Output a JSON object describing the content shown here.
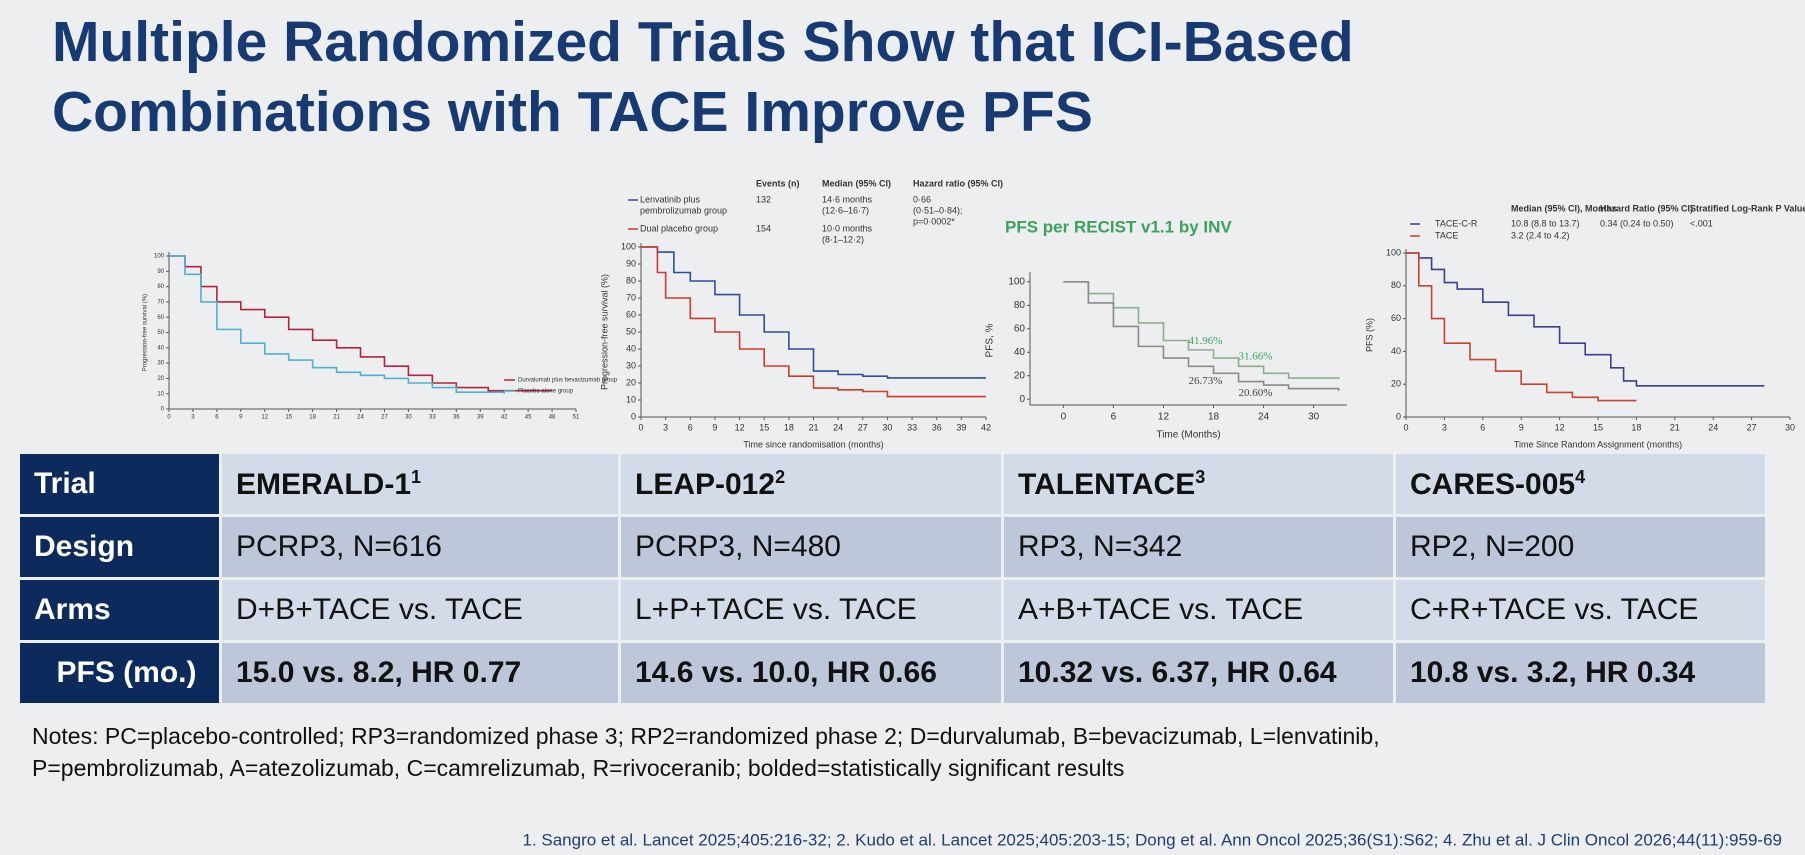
{
  "title": [
    "Multiple Randomized Trials Show that ICI-Based",
    "Combinations with TACE Improve PFS"
  ],
  "figures": [
    {
      "ylabel": "Progression-free survival (%)",
      "xlim": [
        0,
        51
      ],
      "ylim": [
        0,
        100
      ],
      "xticks": [
        0,
        3,
        6,
        9,
        12,
        15,
        18,
        21,
        24,
        27,
        30,
        33,
        36,
        39,
        42,
        45,
        48,
        51
      ],
      "yticks": [
        0,
        10,
        20,
        30,
        40,
        50,
        60,
        70,
        80,
        90,
        100
      ],
      "legend": [
        "Durvalumab plus bevacizumab group",
        "Placebo alone group"
      ],
      "curves": [
        {
          "color": "#b5233a",
          "x": [
            0,
            2,
            4,
            6,
            9,
            12,
            15,
            18,
            21,
            24,
            27,
            30,
            33,
            36,
            40,
            48
          ],
          "y": [
            100,
            93,
            80,
            70,
            65,
            60,
            52,
            45,
            40,
            34,
            28,
            22,
            17,
            14,
            12,
            12
          ]
        },
        {
          "color": "#4fb3cf",
          "x": [
            0,
            2,
            4,
            6,
            9,
            12,
            15,
            18,
            21,
            24,
            27,
            30,
            33,
            36,
            42
          ],
          "y": [
            100,
            88,
            70,
            52,
            43,
            36,
            32,
            27,
            24,
            22,
            20,
            17,
            14,
            11,
            10
          ]
        }
      ]
    },
    {
      "xlabel": "Time since randomisation (months)",
      "ylabel": "Progression-free survival (%)",
      "xlim": [
        0,
        42
      ],
      "ylim": [
        0,
        100
      ],
      "xticks": [
        0,
        3,
        6,
        9,
        12,
        15,
        18,
        21,
        24,
        27,
        30,
        33,
        36,
        39,
        42
      ],
      "yticks": [
        0,
        10,
        20,
        30,
        40,
        50,
        60,
        70,
        80,
        90,
        100
      ],
      "table": {
        "header": [
          "Events (n)",
          "Median (95% CI)",
          "Hazard ratio (95% CI)"
        ],
        "rows": [
          [
            [
              "Lenvatinib plus",
              "pembrolizumab group"
            ],
            "132",
            [
              "14·6 months",
              "(12·6–16·7)"
            ],
            [
              "0·66",
              "(0·51–0·84);",
              "p=0·0002*"
            ]
          ],
          [
            "Dual placebo group",
            "154",
            [
              "10·0 months",
              "(8·1–12·2)"
            ]
          ]
        ]
      },
      "curves": [
        {
          "color": "#2b4f9c",
          "x": [
            0,
            2,
            4,
            6,
            9,
            12,
            15,
            18,
            21,
            24,
            27,
            30,
            42
          ],
          "y": [
            100,
            97,
            85,
            80,
            72,
            60,
            50,
            40,
            27,
            25,
            24,
            23,
            23
          ]
        },
        {
          "color": "#d13a2a",
          "x": [
            0,
            2,
            3,
            6,
            9,
            12,
            15,
            18,
            21,
            24,
            27,
            30,
            42
          ],
          "y": [
            100,
            85,
            70,
            58,
            50,
            40,
            30,
            24,
            17,
            16,
            15,
            12,
            12
          ]
        }
      ]
    },
    {
      "title": "PFS per RECIST v1.1 by INV",
      "xlabel": "Time (Months)",
      "ylabel": "PFS, %",
      "xlim": [
        -4,
        34
      ],
      "ylim": [
        -5,
        105
      ],
      "xticks": [
        0,
        6,
        12,
        18,
        24,
        30
      ],
      "yticks": [
        0,
        20,
        40,
        60,
        80,
        100
      ],
      "annotations": [
        "41.96%",
        "31.66%",
        "26.73%",
        "20.60%"
      ],
      "curves": [
        {
          "color": "#8fae8f",
          "x": [
            0,
            3,
            6,
            9,
            12,
            15,
            18,
            21,
            24,
            27,
            33
          ],
          "y": [
            100,
            90,
            78,
            65,
            50,
            42,
            35,
            28,
            22,
            18,
            17
          ]
        },
        {
          "color": "#8a8a8a",
          "x": [
            0,
            3,
            6,
            9,
            12,
            15,
            18,
            21,
            24,
            27,
            33
          ],
          "y": [
            100,
            82,
            62,
            45,
            35,
            28,
            22,
            15,
            12,
            9,
            7
          ]
        }
      ]
    },
    {
      "xlabel": "Time Since Random Assignment (months)",
      "ylabel": "PFS (%)",
      "xlim": [
        0,
        30
      ],
      "ylim": [
        0,
        100
      ],
      "xticks": [
        0,
        3,
        6,
        9,
        12,
        15,
        18,
        21,
        24,
        27,
        30
      ],
      "yticks": [
        0,
        20,
        40,
        60,
        80,
        100
      ],
      "table": {
        "header": [
          "Median (95% CI), Months",
          "Hazard Ratio (95% CI)",
          "Stratified Log-Rank P Value"
        ],
        "rows": [
          [
            "TACE-C-R",
            "10.8 (8.8 to 13.7)",
            "0.34 (0.24 to 0.50)",
            "<.001"
          ],
          [
            "TACE",
            "3.2 (2.4 to 4.2)"
          ]
        ]
      },
      "curves": [
        {
          "color": "#3b3f8c",
          "x": [
            0,
            1,
            2,
            3,
            4,
            6,
            8,
            10,
            12,
            14,
            16,
            17,
            18,
            28
          ],
          "y": [
            100,
            97,
            90,
            82,
            78,
            70,
            62,
            55,
            45,
            38,
            30,
            22,
            19,
            19
          ]
        },
        {
          "color": "#c8412e",
          "x": [
            0,
            1,
            2,
            3,
            5,
            7,
            9,
            11,
            13,
            15,
            18
          ],
          "y": [
            100,
            80,
            60,
            45,
            35,
            28,
            20,
            15,
            12,
            10,
            10
          ]
        }
      ]
    }
  ],
  "table": {
    "header": [
      "Trial",
      "EMERALD-1",
      "LEAP-012",
      "TALENTACE",
      "CARES-005"
    ],
    "header_refs": [
      "1",
      "2",
      "3",
      "4"
    ],
    "rows": [
      [
        "Design",
        "PCRP3, N=616",
        "PCRP3, N=480",
        "RP3, N=342",
        "RP2, N=200"
      ],
      [
        "Arms",
        "D+B+TACE vs. TACE",
        "L+P+TACE vs. TACE",
        "A+B+TACE vs. TACE",
        "C+R+TACE vs. TACE"
      ],
      [
        "PFS (mo.)",
        "15.0 vs. 8.2, HR 0.77",
        "14.6 vs. 10.0, HR 0.66",
        "10.32 vs. 6.37, HR 0.64",
        "10.8 vs. 3.2, HR 0.34"
      ]
    ]
  },
  "notes": [
    "Notes: PC=placebo-controlled; RP3=randomized phase 3; RP2=randomized phase 2; D=durvalumab, B=bevacizumab, L=lenvatinib,",
    "P=pembrolizumab, A=atezolizumab, C=camrelizumab, R=rivoceranib; bolded=statistically significant results"
  ],
  "references": "1. Sangro et al. Lancet 2025;405:216-32; 2. Kudo et al. Lancet 2025;405:203-15; Dong et al. Ann Oncol 2025;36(S1):S62; 4. Zhu et al. J Clin Oncol 2026;44(11):959-69"
}
